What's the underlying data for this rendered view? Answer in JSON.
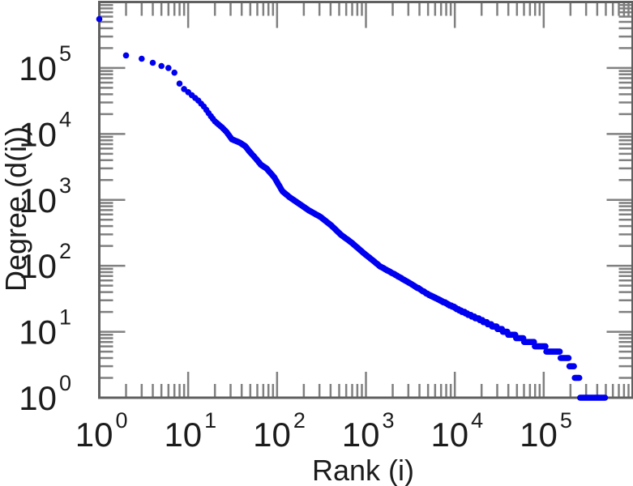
{
  "chart_data": {
    "type": "scatter",
    "title": "",
    "xlabel": "Rank (i)",
    "ylabel": "Degree (d(i))",
    "xscale": "log",
    "yscale": "log",
    "xlim": [
      1,
      1000000
    ],
    "ylim": [
      1,
      1000000
    ],
    "grid": false,
    "legend": null,
    "tick_mantissa": "10",
    "x_tick_exponents": [
      0,
      1,
      2,
      3,
      4,
      5
    ],
    "y_tick_exponents": [
      0,
      1,
      2,
      3,
      4,
      5
    ],
    "marker": {
      "shape": "circle",
      "color": "#0000f0",
      "radius_px": 3.8
    },
    "series_name": "degree-vs-rank",
    "points": [
      [
        1,
        550000
      ],
      [
        2,
        155000
      ],
      [
        3,
        138000
      ],
      [
        4,
        120000
      ],
      [
        5,
        107000
      ],
      [
        6,
        100000
      ],
      [
        7,
        85000
      ],
      [
        8,
        58000
      ],
      [
        9,
        48000
      ],
      [
        10,
        43000
      ],
      [
        13,
        32000
      ],
      [
        15,
        26000
      ],
      [
        18,
        18600
      ],
      [
        20,
        15500
      ],
      [
        24,
        12600
      ],
      [
        27,
        10700
      ],
      [
        31,
        8300
      ],
      [
        38,
        7400
      ],
      [
        44,
        6500
      ],
      [
        49,
        5400
      ],
      [
        58,
        4200
      ],
      [
        66,
        3400
      ],
      [
        76,
        3000
      ],
      [
        93,
        2200
      ],
      [
        115,
        1350
      ],
      [
        138,
        1100
      ],
      [
        178,
        870
      ],
      [
        229,
        690
      ],
      [
        309,
        550
      ],
      [
        407,
        410
      ],
      [
        525,
        295
      ],
      [
        692,
        224
      ],
      [
        933,
        158
      ],
      [
        1445,
        98
      ],
      [
        2190,
        72
      ],
      [
        3310,
        52
      ],
      [
        5010,
        37
      ],
      [
        7590,
        28
      ],
      [
        11500,
        21
      ],
      [
        17800,
        16
      ],
      [
        26900,
        12.3
      ],
      [
        33100,
        10.7
      ],
      [
        40700,
        9.3
      ],
      [
        50100,
        8.3
      ],
      [
        61700,
        7.4
      ],
      [
        75900,
        6.6
      ],
      [
        93300,
        6.0
      ],
      [
        115000,
        5.2
      ],
      [
        141000,
        4.7
      ],
      [
        166000,
        4.3
      ],
      [
        186000,
        3.7
      ],
      [
        204000,
        3.0
      ],
      [
        240000,
        2.0
      ],
      [
        269000,
        1.0
      ],
      [
        501000,
        1.0
      ]
    ]
  },
  "colors": {
    "background": "#ffffff",
    "border": "#606060",
    "ticks": "#808080",
    "text": "#1c1c1c",
    "marker": "#0000f0"
  }
}
